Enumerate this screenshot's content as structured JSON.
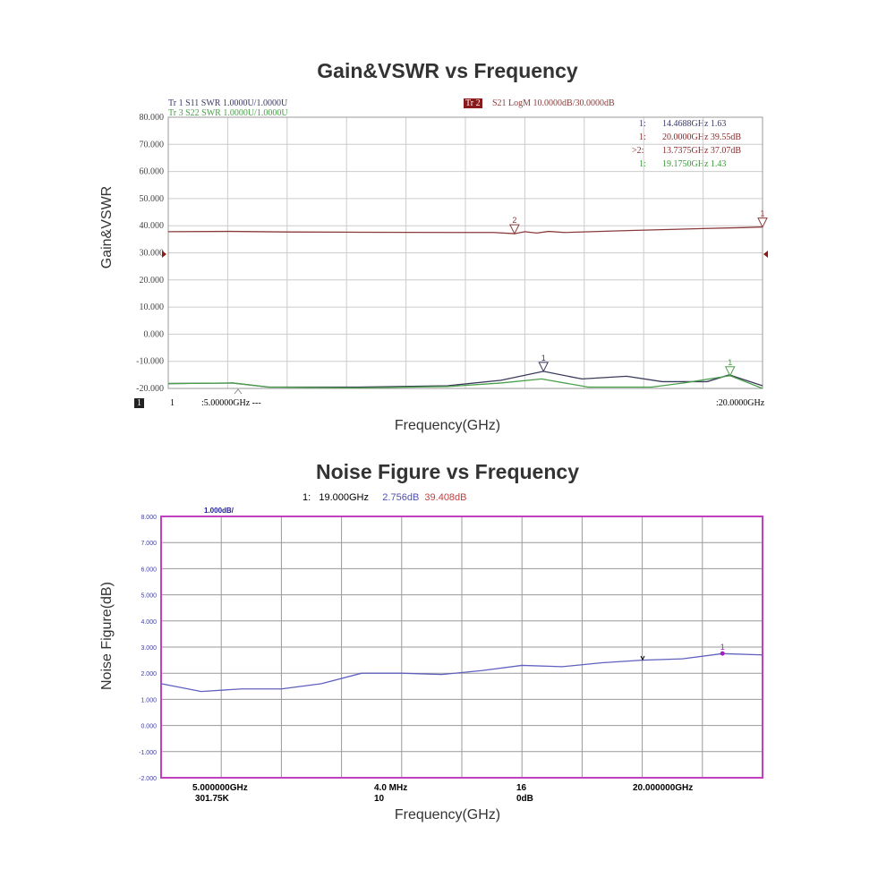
{
  "chart_data": [
    {
      "type": "line",
      "title": "Gain&VSWR vs Frequency",
      "xlabel": "Frequency(GHz)",
      "ylabel": "Gain&VSWR",
      "xlim": [
        5,
        20
      ],
      "ylim": [
        -20,
        80
      ],
      "grid": true,
      "yticks": [
        "80.000",
        "70.000",
        "60.000",
        "50.000",
        "40.000",
        "30.000",
        "20.000",
        "10.000",
        "0.000",
        "-10.000",
        "-20.000"
      ],
      "trace_labels": {
        "tr1": "Tr 1  S11 SWR 1.0000U/1.0000U",
        "tr3": "Tr 3  S22 SWR 1.0000U/1.0000U",
        "tr2_badge": "Tr 2",
        "tr2": "S21 LogM 10.0000dB/30.0000dB"
      },
      "markers_text": [
        {
          "id": "1:",
          "text": "14.4688GHz 1.63",
          "color": "#3a3a6a"
        },
        {
          "id": "1:",
          "text": "20.0000GHz 39.55dB",
          "color": "#8b2a2a"
        },
        {
          "id": ">2:",
          "text": "13.7375GHz 37.07dB",
          "color": "#8b2a2a"
        },
        {
          "id": "1:",
          "text": "19.1750GHz 1.43",
          "color": "#3a9a3a"
        }
      ],
      "footer": {
        "channel": "1",
        "ch_num": "1",
        "start": ":5.00000GHz ---",
        "stop": ":20.0000GHz"
      },
      "series": [
        {
          "name": "S21",
          "color": "#8b3a3a",
          "x": [
            5,
            6.6,
            8,
            9.8,
            12.2,
            13.2,
            13.74,
            14.0,
            14.3,
            14.6,
            15.0,
            16.6,
            18.6,
            19.5,
            20
          ],
          "y": [
            37.8,
            37.9,
            37.7,
            37.6,
            37.5,
            37.5,
            37.07,
            37.8,
            37.3,
            37.9,
            37.5,
            38.2,
            39.0,
            39.3,
            39.55
          ]
        },
        {
          "name": "S11",
          "color": "#3a3a5a",
          "x": [
            5,
            6.63,
            7.53,
            9.79,
            12.05,
            13.4,
            14.47,
            15.44,
            16.57,
            17.47,
            18.6,
            19.16,
            20
          ],
          "y": [
            -18.2,
            -18,
            -19.5,
            -19.5,
            -19,
            -17,
            -13.7,
            -16.5,
            -15.5,
            -17.5,
            -17.5,
            -15,
            -19
          ]
        },
        {
          "name": "S22",
          "color": "#4aa04a",
          "x": [
            5,
            6.63,
            7.53,
            9.79,
            12.05,
            13.4,
            14.42,
            15.6,
            16.57,
            17.2,
            18.0,
            19.18,
            20
          ],
          "y": [
            -18.2,
            -18,
            -19.5,
            -19.8,
            -19.3,
            -18,
            -16.5,
            -19.5,
            -19.5,
            -19.5,
            -18,
            -15.3,
            -20
          ]
        }
      ],
      "marker_points": [
        {
          "label": "2",
          "x": 13.74,
          "y": 37.07,
          "color": "#8b3a3a"
        },
        {
          "label": "1",
          "x": 20,
          "y": 39.55,
          "color": "#8b3a3a"
        },
        {
          "label": "1",
          "x": 14.47,
          "y": -13.7,
          "color": "#3a3a5a"
        },
        {
          "label": "1",
          "x": 19.18,
          "y": -15.3,
          "color": "#4aa04a"
        }
      ]
    },
    {
      "type": "line",
      "title": "Noise Figure vs Frequency",
      "xlabel": "Frequency(GHz)",
      "ylabel": "Noise Figure(dB)",
      "xlim": [
        5,
        20
      ],
      "ylim": [
        -2,
        8
      ],
      "grid": true,
      "yticks": [
        "8.000",
        "7.000",
        "6.000",
        "5.000",
        "4.000",
        "3.000",
        "2.000",
        "1.000",
        "0.000",
        "-1.000",
        "-2.000"
      ],
      "scale": "1.000dB/",
      "marker_readout": {
        "id": "1:",
        "freq": "19.000GHz",
        "nf": "2.756dB",
        "gain": "39.408dB"
      },
      "footer": {
        "start": "5.000000GHz",
        "rbw": "301.75K",
        "bw": "4.0  MHz",
        "avg": "10",
        "points": "16",
        "atten": "0dB",
        "stop": "20.000000GHz"
      },
      "series": [
        {
          "color": "#6060c0",
          "x": [
            5,
            6,
            7,
            8,
            9,
            10,
            11,
            12,
            13,
            14,
            15,
            16,
            17,
            18,
            19,
            20
          ],
          "y": [
            1.6,
            1.3,
            1.4,
            1.4,
            1.6,
            2.0,
            2.0,
            1.95,
            2.1,
            2.3,
            2.25,
            2.4,
            2.5,
            2.55,
            2.75,
            2.7
          ]
        }
      ],
      "marker_points": [
        {
          "label": "1",
          "x": 19,
          "y": 2.756,
          "color": "#a020c0"
        }
      ]
    }
  ]
}
